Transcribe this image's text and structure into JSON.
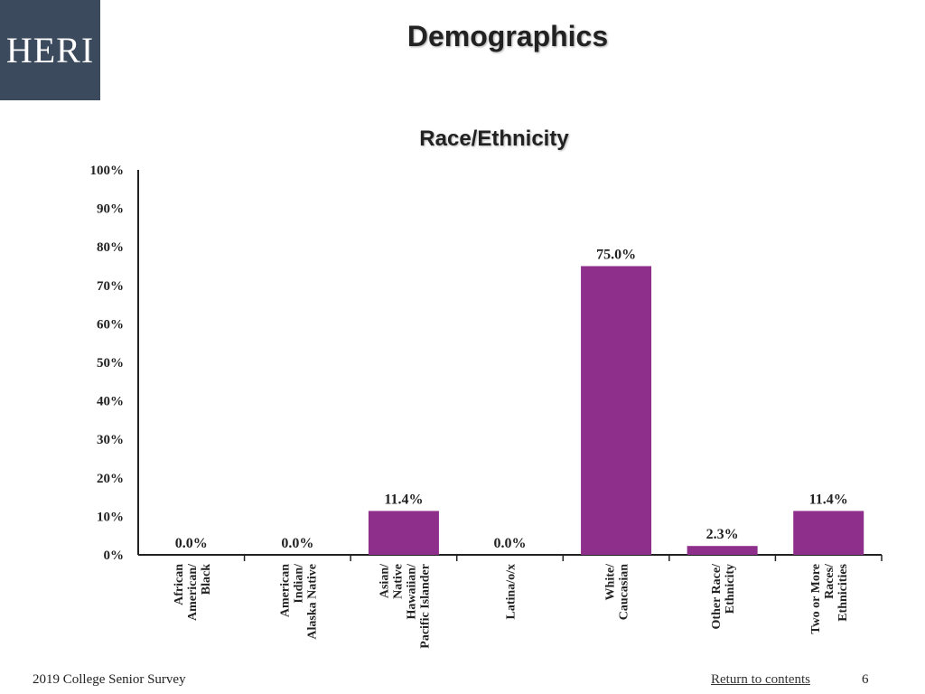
{
  "header": {
    "logo_text": "HERI",
    "title": "Demographics"
  },
  "footer": {
    "survey": "2019 College Senior Survey",
    "return_link": "Return to contents",
    "page_number": "6"
  },
  "colors": {
    "bar": "#8e2f8c",
    "logo_bg": "#3c4a5e",
    "axis": "#222222"
  },
  "chart_data": {
    "type": "bar",
    "title": "Race/Ethnicity",
    "categories": [
      [
        "African",
        "American/",
        "Black"
      ],
      [
        "American",
        "Indian/",
        "Alaska Native"
      ],
      [
        "Asian/",
        "Native",
        "Hawaiian/",
        "Pacific Islander"
      ],
      [
        "Latina/o/x"
      ],
      [
        "White/",
        "Caucasian"
      ],
      [
        "Other Race/",
        "Ethnicity"
      ],
      [
        "Two or More",
        "Races/",
        "Ethnicities"
      ]
    ],
    "values": [
      0.0,
      0.0,
      11.4,
      0.0,
      75.0,
      2.3,
      11.4
    ],
    "data_labels": [
      "0.0%",
      "0.0%",
      "11.4%",
      "0.0%",
      "75.0%",
      "2.3%",
      "11.4%"
    ],
    "y_ticks": [
      "0%",
      "10%",
      "20%",
      "30%",
      "40%",
      "50%",
      "60%",
      "70%",
      "80%",
      "90%",
      "100%"
    ],
    "ylim": [
      0,
      100
    ],
    "grid": false,
    "legend": "none"
  }
}
